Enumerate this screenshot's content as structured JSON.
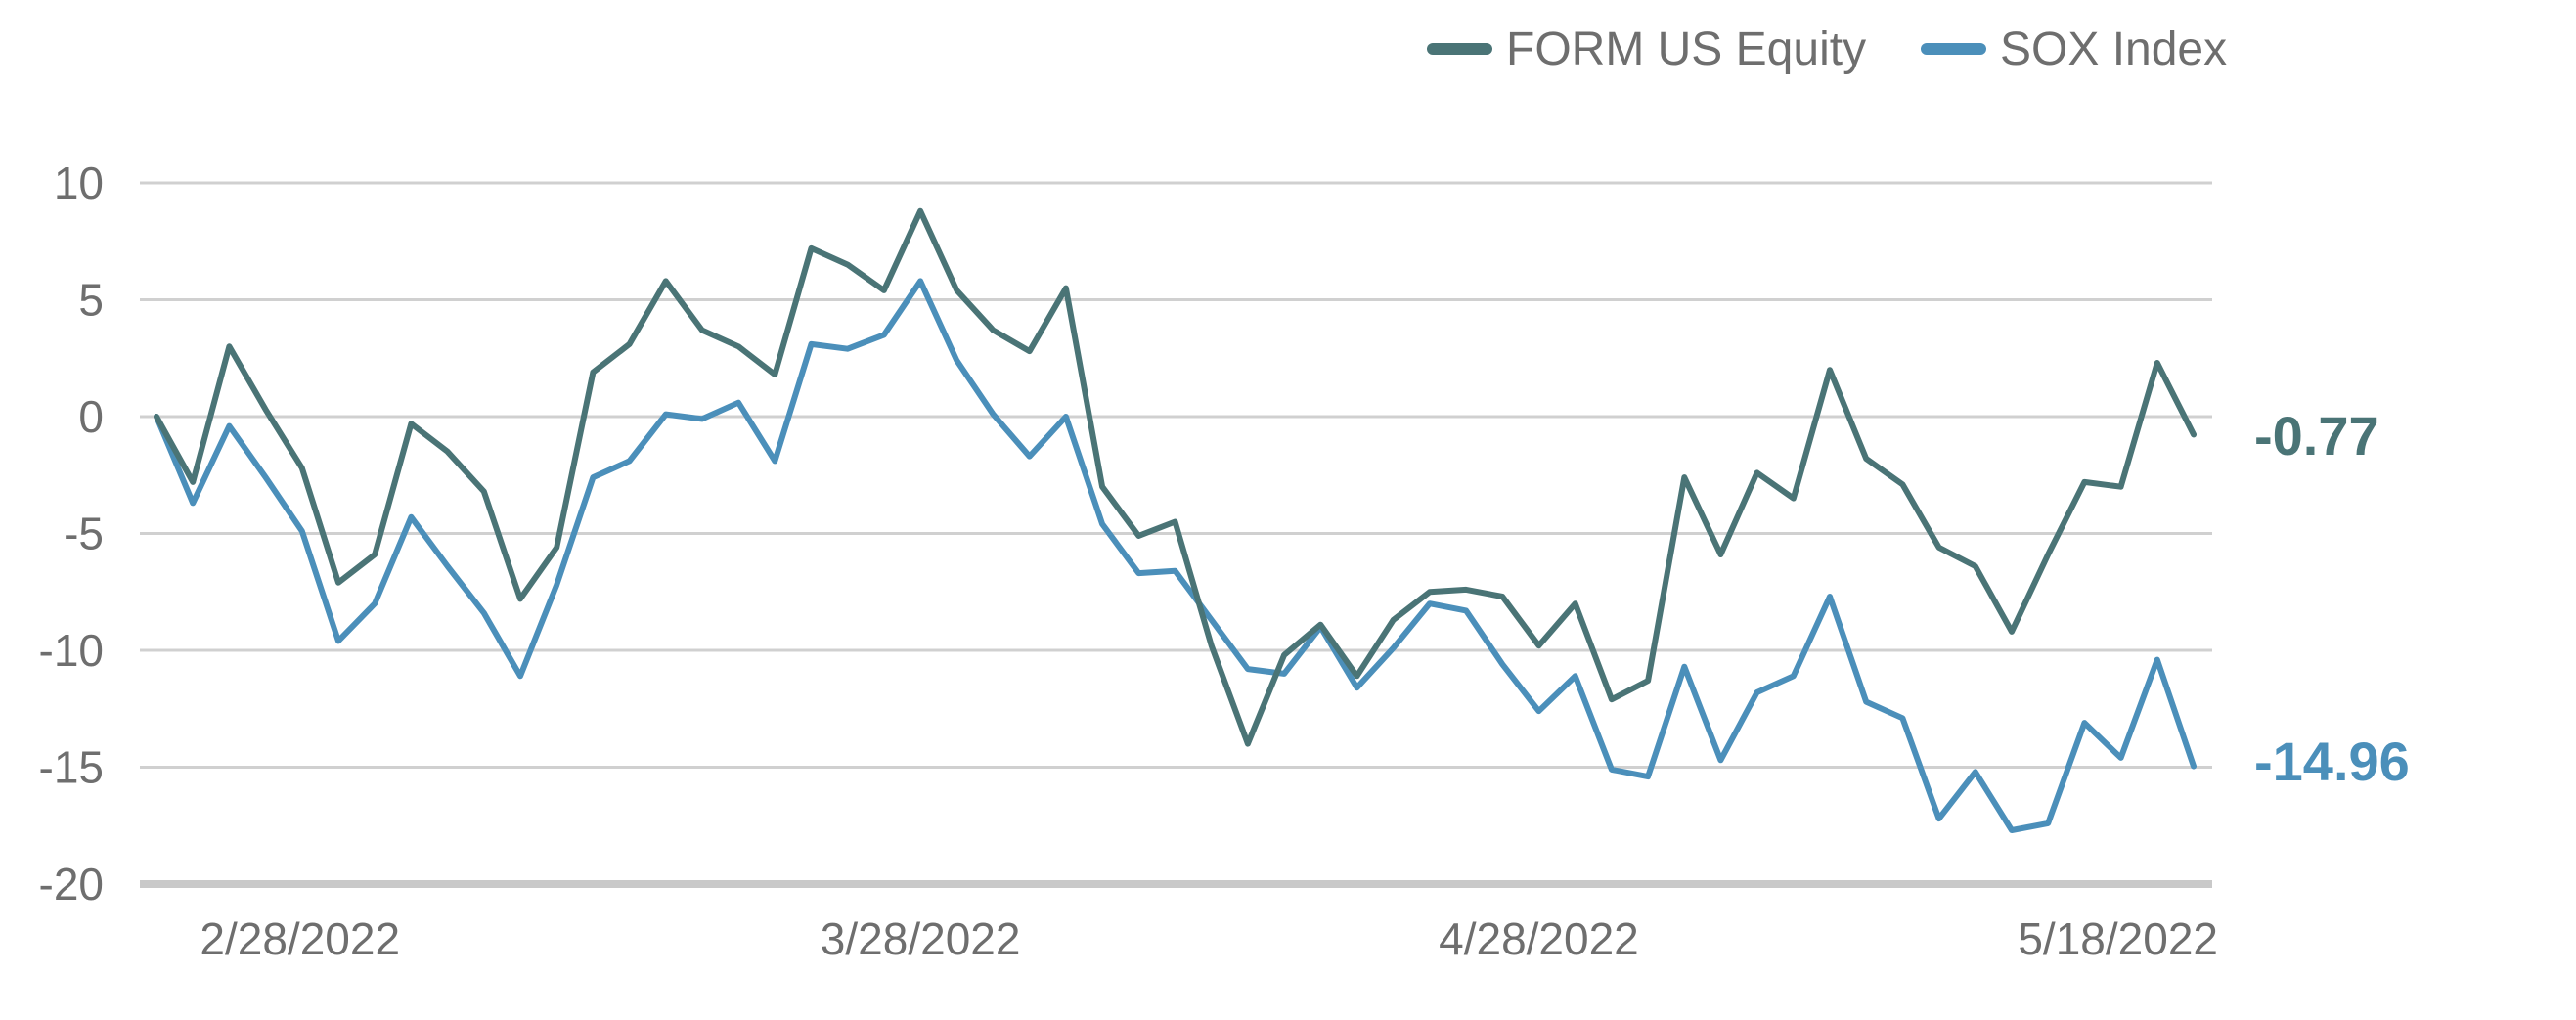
{
  "chart_data": {
    "type": "line",
    "title": "",
    "xlabel": "",
    "ylabel": "",
    "ylim": [
      -20,
      10
    ],
    "yticks": [
      10,
      5,
      0,
      -5,
      -10,
      -15,
      -20
    ],
    "x_tick_labels": [
      "2/28/2022",
      "3/28/2022",
      "4/28/2022",
      "5/18/2022"
    ],
    "x_tick_indices": [
      2,
      21,
      38,
      56
    ],
    "grid": true,
    "legend_placement": "top-right",
    "series": [
      {
        "name": "FORM US Equity",
        "color": "#4a7476",
        "end_label": "-0.77",
        "values": [
          0,
          -2.8,
          3.0,
          0.3,
          -2.2,
          -7.1,
          -5.9,
          -0.3,
          -1.5,
          -3.2,
          -7.8,
          -5.6,
          1.9,
          3.1,
          5.8,
          3.7,
          3.0,
          1.8,
          7.2,
          6.5,
          5.4,
          8.8,
          5.4,
          3.7,
          2.8,
          5.5,
          -3.0,
          -5.1,
          -4.5,
          -9.8,
          -14.0,
          -10.2,
          -8.9,
          -11.1,
          -8.7,
          -7.5,
          -7.4,
          -7.7,
          -9.8,
          -8.0,
          -12.1,
          -11.3,
          -2.6,
          -5.9,
          -2.4,
          -3.5,
          2.0,
          -1.8,
          -2.9,
          -5.6,
          -6.4,
          -9.2,
          -5.9,
          -2.8,
          -3.0,
          2.3,
          -0.77
        ]
      },
      {
        "name": "SOX Index",
        "color": "#4b8fba",
        "end_label": "-14.96",
        "values": [
          0,
          -3.7,
          -0.4,
          -2.6,
          -4.9,
          -9.6,
          -8.0,
          -4.3,
          -6.4,
          -8.4,
          -11.1,
          -7.2,
          -2.6,
          -1.9,
          0.1,
          -0.1,
          0.6,
          -1.9,
          3.1,
          2.9,
          3.5,
          5.8,
          2.4,
          0.1,
          -1.7,
          0.0,
          -4.6,
          -6.7,
          -6.6,
          -8.7,
          -10.8,
          -11.0,
          -9.0,
          -11.6,
          -9.9,
          -8.0,
          -8.3,
          -10.6,
          -12.6,
          -11.1,
          -15.1,
          -15.4,
          -10.7,
          -14.7,
          -11.8,
          -11.1,
          -7.7,
          -12.2,
          -12.9,
          -17.2,
          -15.2,
          -17.7,
          -17.4,
          -13.1,
          -14.6,
          -10.4,
          -14.96
        ]
      }
    ]
  }
}
